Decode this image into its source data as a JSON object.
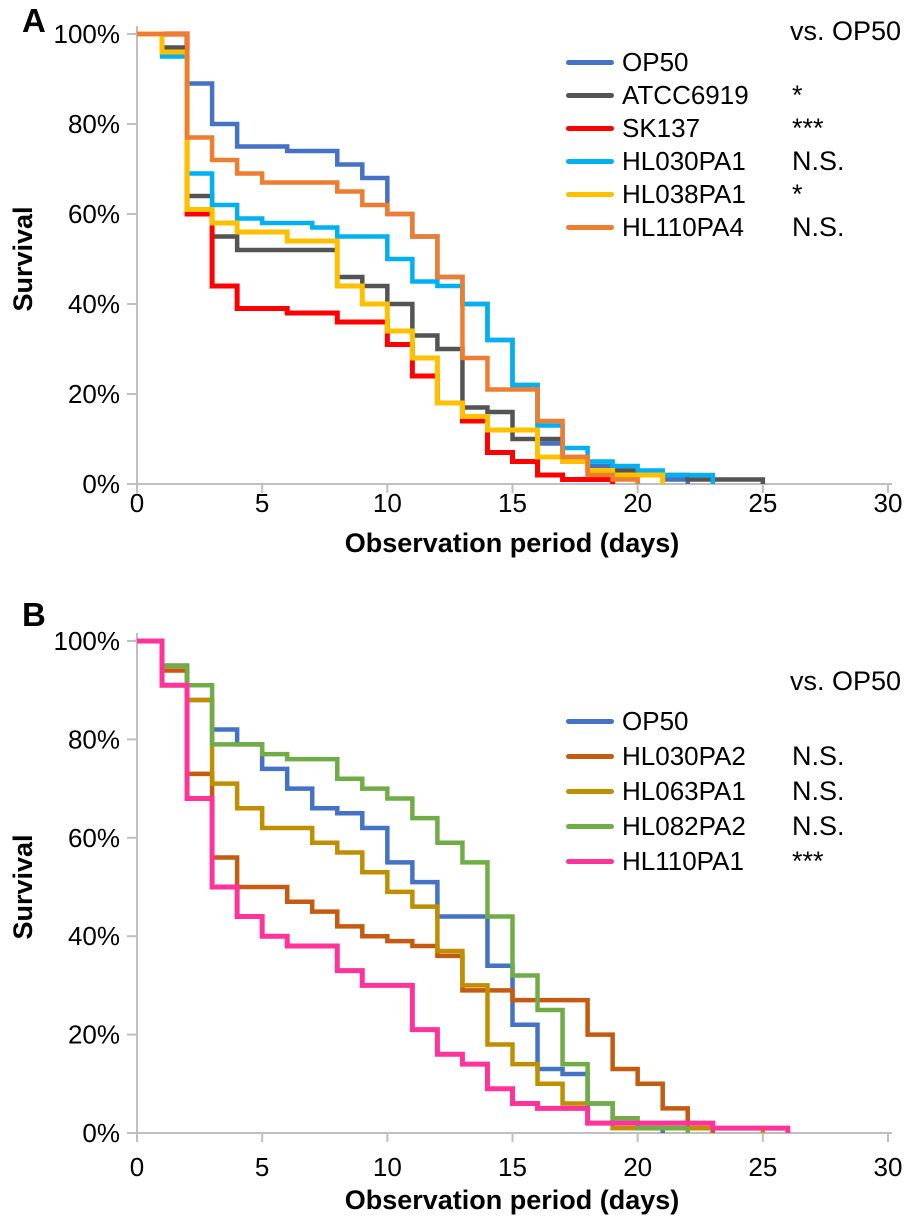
{
  "figure": {
    "background": "#ffffff",
    "panel_labels": [
      "A",
      "B"
    ]
  },
  "chart_data": [
    {
      "panel": "A",
      "type": "line",
      "subtype": "kaplan-meier-step-survival",
      "title": "",
      "xlabel": "Observation period (days)",
      "ylabel": "Survival",
      "xlim": [
        0,
        30
      ],
      "ylim": [
        0,
        100
      ],
      "grid": false,
      "legend_position": "top-right-inside",
      "comparison_header": "vs. OP50",
      "axis_color": "#BFBFBF",
      "x_ticks": [
        {
          "value": 0,
          "label": "0"
        },
        {
          "value": 5,
          "label": "5"
        },
        {
          "value": 10,
          "label": "10"
        },
        {
          "value": 15,
          "label": "15"
        },
        {
          "value": 20,
          "label": "20"
        },
        {
          "value": 25,
          "label": "25"
        },
        {
          "value": 30,
          "label": "30"
        }
      ],
      "y_ticks": [
        {
          "value": 100,
          "label": "100%"
        },
        {
          "value": 80,
          "label": "80%"
        },
        {
          "value": 60,
          "label": "60%"
        },
        {
          "value": 40,
          "label": "40%"
        },
        {
          "value": 20,
          "label": "20%"
        },
        {
          "value": 0,
          "label": "0%"
        }
      ],
      "series": [
        {
          "name": "OP50",
          "color": "#4472C4",
          "significance": "",
          "line_width": 4.5,
          "points": [
            [
              0,
              100
            ],
            [
              2,
              89
            ],
            [
              3,
              80
            ],
            [
              4,
              75
            ],
            [
              6,
              74
            ],
            [
              8,
              71
            ],
            [
              9,
              68
            ],
            [
              10,
              60
            ],
            [
              11,
              55
            ],
            [
              12,
              46
            ],
            [
              13,
              40
            ],
            [
              14,
              32
            ],
            [
              15,
              22
            ],
            [
              16,
              9
            ],
            [
              17,
              6
            ],
            [
              18,
              4
            ],
            [
              19,
              3
            ],
            [
              20,
              2
            ],
            [
              21,
              1
            ],
            [
              22,
              0
            ]
          ]
        },
        {
          "name": "ATCC6919",
          "color": "#545454",
          "significance": "*",
          "line_width": 4.5,
          "points": [
            [
              0,
              100
            ],
            [
              1,
              97
            ],
            [
              2,
              64
            ],
            [
              3,
              55
            ],
            [
              4,
              52
            ],
            [
              8,
              46
            ],
            [
              9,
              44
            ],
            [
              10,
              40
            ],
            [
              11,
              33
            ],
            [
              12,
              30
            ],
            [
              13,
              17
            ],
            [
              14,
              16
            ],
            [
              15,
              10
            ],
            [
              17,
              5
            ],
            [
              18,
              3
            ],
            [
              20,
              2
            ],
            [
              22,
              1
            ],
            [
              25,
              0
            ]
          ]
        },
        {
          "name": "SK137",
          "color": "#FF0000",
          "significance": "***",
          "line_width": 5,
          "points": [
            [
              0,
              100
            ],
            [
              2,
              60
            ],
            [
              3,
              44
            ],
            [
              4,
              39
            ],
            [
              6,
              38
            ],
            [
              8,
              36
            ],
            [
              10,
              31
            ],
            [
              11,
              24
            ],
            [
              12,
              18
            ],
            [
              13,
              14
            ],
            [
              14,
              7
            ],
            [
              15,
              5
            ],
            [
              16,
              2
            ],
            [
              17,
              1
            ],
            [
              19,
              0
            ]
          ]
        },
        {
          "name": "HL030PA1",
          "color": "#00B0F0",
          "significance": "N.S.",
          "line_width": 4.5,
          "points": [
            [
              0,
              100
            ],
            [
              1,
              95
            ],
            [
              2,
              69
            ],
            [
              3,
              62
            ],
            [
              4,
              59
            ],
            [
              5,
              58
            ],
            [
              7,
              57
            ],
            [
              8,
              55
            ],
            [
              10,
              50
            ],
            [
              11,
              45
            ],
            [
              12,
              44
            ],
            [
              13,
              40
            ],
            [
              14,
              32
            ],
            [
              15,
              22
            ],
            [
              16,
              13
            ],
            [
              17,
              8
            ],
            [
              18,
              5
            ],
            [
              19,
              4
            ],
            [
              20,
              3
            ],
            [
              21,
              2
            ],
            [
              23,
              0
            ]
          ]
        },
        {
          "name": "HL038PA1",
          "color": "#FFC000",
          "significance": "*",
          "line_width": 5,
          "points": [
            [
              0,
              100
            ],
            [
              1,
              96
            ],
            [
              2,
              61
            ],
            [
              3,
              58
            ],
            [
              4,
              56
            ],
            [
              6,
              54
            ],
            [
              8,
              44
            ],
            [
              9,
              40
            ],
            [
              10,
              34
            ],
            [
              11,
              28
            ],
            [
              12,
              18
            ],
            [
              13,
              15
            ],
            [
              14,
              12
            ],
            [
              16,
              6
            ],
            [
              17,
              5
            ],
            [
              18,
              3
            ],
            [
              19,
              2
            ],
            [
              21,
              0
            ]
          ]
        },
        {
          "name": "HL110PA4",
          "color": "#ED7D31",
          "significance": "N.S.",
          "line_width": 4.5,
          "points": [
            [
              0,
              100
            ],
            [
              2,
              77
            ],
            [
              3,
              72
            ],
            [
              4,
              69
            ],
            [
              5,
              67
            ],
            [
              8,
              65
            ],
            [
              9,
              62
            ],
            [
              10,
              60
            ],
            [
              11,
              55
            ],
            [
              12,
              46
            ],
            [
              13,
              28
            ],
            [
              14,
              21
            ],
            [
              16,
              14
            ],
            [
              17,
              6
            ],
            [
              18,
              2
            ],
            [
              19,
              1
            ],
            [
              20,
              0
            ]
          ]
        }
      ]
    },
    {
      "panel": "B",
      "type": "line",
      "subtype": "kaplan-meier-step-survival",
      "title": "",
      "xlabel": "Observation period (days)",
      "ylabel": "Survival",
      "xlim": [
        0,
        30
      ],
      "ylim": [
        0,
        100
      ],
      "grid": false,
      "legend_position": "top-right-inside",
      "comparison_header": "vs. OP50",
      "axis_color": "#BFBFBF",
      "x_ticks": [
        {
          "value": 0,
          "label": "0"
        },
        {
          "value": 5,
          "label": "5"
        },
        {
          "value": 10,
          "label": "10"
        },
        {
          "value": 15,
          "label": "15"
        },
        {
          "value": 20,
          "label": "20"
        },
        {
          "value": 25,
          "label": "25"
        },
        {
          "value": 30,
          "label": "30"
        }
      ],
      "y_ticks": [
        {
          "value": 100,
          "label": "100%"
        },
        {
          "value": 80,
          "label": "80%"
        },
        {
          "value": 60,
          "label": "60%"
        },
        {
          "value": 40,
          "label": "40%"
        },
        {
          "value": 20,
          "label": "20%"
        },
        {
          "value": 0,
          "label": "0%"
        }
      ],
      "series": [
        {
          "name": "OP50",
          "color": "#4472C4",
          "significance": "",
          "line_width": 4.5,
          "points": [
            [
              0,
              100
            ],
            [
              1,
              95
            ],
            [
              2,
              88
            ],
            [
              3,
              82
            ],
            [
              4,
              79
            ],
            [
              5,
              74
            ],
            [
              6,
              70
            ],
            [
              7,
              66
            ],
            [
              8,
              65
            ],
            [
              9,
              62
            ],
            [
              10,
              55
            ],
            [
              11,
              51
            ],
            [
              12,
              44
            ],
            [
              14,
              34
            ],
            [
              15,
              22
            ],
            [
              16,
              13
            ],
            [
              17,
              12
            ],
            [
              18,
              6
            ],
            [
              19,
              2
            ],
            [
              20,
              1
            ],
            [
              21,
              0
            ]
          ]
        },
        {
          "name": "HL030PA2",
          "color": "#C55A11",
          "significance": "N.S.",
          "line_width": 4.5,
          "points": [
            [
              0,
              100
            ],
            [
              1,
              94
            ],
            [
              2,
              73
            ],
            [
              3,
              56
            ],
            [
              4,
              50
            ],
            [
              6,
              47
            ],
            [
              7,
              45
            ],
            [
              8,
              42
            ],
            [
              9,
              40
            ],
            [
              10,
              39
            ],
            [
              11,
              38
            ],
            [
              12,
              36
            ],
            [
              13,
              29
            ],
            [
              15,
              27
            ],
            [
              18,
              20
            ],
            [
              19,
              13
            ],
            [
              20,
              10
            ],
            [
              21,
              5
            ],
            [
              22,
              1
            ],
            [
              23,
              0
            ]
          ]
        },
        {
          "name": "HL063PA1",
          "color": "#BF8F00",
          "significance": "N.S.",
          "line_width": 4.5,
          "points": [
            [
              0,
              100
            ],
            [
              1,
              95
            ],
            [
              2,
              88
            ],
            [
              3,
              71
            ],
            [
              4,
              66
            ],
            [
              5,
              62
            ],
            [
              7,
              59
            ],
            [
              8,
              57
            ],
            [
              9,
              53
            ],
            [
              10,
              49
            ],
            [
              11,
              46
            ],
            [
              12,
              37
            ],
            [
              13,
              30
            ],
            [
              14,
              18
            ],
            [
              15,
              14
            ],
            [
              16,
              10
            ],
            [
              17,
              6
            ],
            [
              18,
              2
            ],
            [
              19,
              1
            ],
            [
              25,
              0
            ]
          ]
        },
        {
          "name": "HL082PA2",
          "color": "#70AD47",
          "significance": "N.S.",
          "line_width": 4.5,
          "points": [
            [
              0,
              100
            ],
            [
              1,
              95
            ],
            [
              2,
              91
            ],
            [
              3,
              79
            ],
            [
              5,
              77
            ],
            [
              6,
              76
            ],
            [
              8,
              72
            ],
            [
              9,
              70
            ],
            [
              10,
              68
            ],
            [
              11,
              64
            ],
            [
              12,
              59
            ],
            [
              13,
              55
            ],
            [
              14,
              44
            ],
            [
              15,
              32
            ],
            [
              16,
              25
            ],
            [
              17,
              14
            ],
            [
              18,
              6
            ],
            [
              19,
              3
            ],
            [
              20,
              1
            ],
            [
              22,
              0
            ]
          ]
        },
        {
          "name": "HL110PA1",
          "color": "#FF3399",
          "significance": "***",
          "line_width": 5,
          "points": [
            [
              0,
              100
            ],
            [
              1,
              91
            ],
            [
              2,
              68
            ],
            [
              3,
              50
            ],
            [
              4,
              44
            ],
            [
              5,
              40
            ],
            [
              6,
              38
            ],
            [
              8,
              33
            ],
            [
              9,
              30
            ],
            [
              11,
              21
            ],
            [
              12,
              16
            ],
            [
              13,
              14
            ],
            [
              14,
              9
            ],
            [
              15,
              6
            ],
            [
              16,
              5
            ],
            [
              18,
              2
            ],
            [
              23,
              1
            ],
            [
              26,
              0
            ]
          ]
        }
      ]
    }
  ]
}
